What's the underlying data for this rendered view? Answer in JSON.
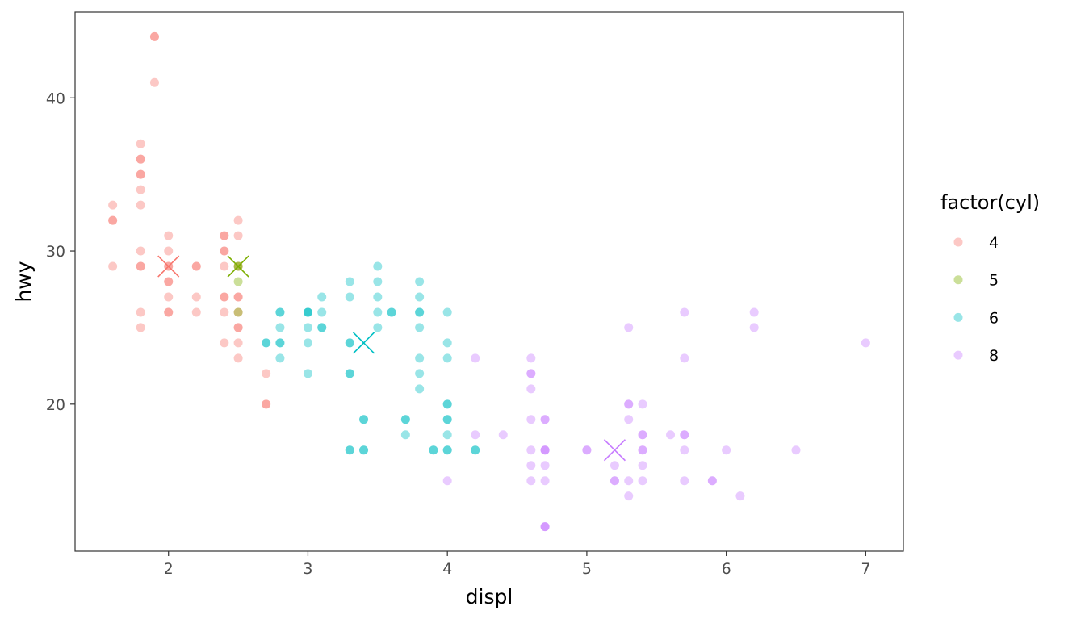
{
  "chart_data": {
    "type": "scatter",
    "xlabel": "displ",
    "ylabel": "hwy",
    "xlim": [
      1.33,
      7.27
    ],
    "ylim": [
      10.4,
      45.6
    ],
    "xticks": [
      2,
      3,
      4,
      5,
      6,
      7
    ],
    "yticks": [
      20,
      30,
      40
    ],
    "grid": false,
    "legend": {
      "title": "factor(cyl)",
      "placement": "right"
    },
    "point_alpha": 0.4,
    "series": [
      {
        "name": "4",
        "color": "#F8766D",
        "points": [
          [
            1.6,
            33
          ],
          [
            1.6,
            32
          ],
          [
            1.6,
            32
          ],
          [
            1.6,
            29
          ],
          [
            1.9,
            44
          ],
          [
            1.9,
            44
          ],
          [
            1.9,
            41
          ],
          [
            1.8,
            37
          ],
          [
            1.8,
            36
          ],
          [
            1.8,
            36
          ],
          [
            1.8,
            35
          ],
          [
            1.8,
            35
          ],
          [
            1.8,
            34
          ],
          [
            1.8,
            33
          ],
          [
            1.8,
            30
          ],
          [
            1.8,
            29
          ],
          [
            1.8,
            29
          ],
          [
            1.8,
            26
          ],
          [
            1.8,
            25
          ],
          [
            2.0,
            31
          ],
          [
            2.0,
            30
          ],
          [
            2.0,
            29
          ],
          [
            2.0,
            29
          ],
          [
            2.0,
            28
          ],
          [
            2.0,
            28
          ],
          [
            2.0,
            27
          ],
          [
            2.0,
            26
          ],
          [
            2.0,
            26
          ],
          [
            2.2,
            29
          ],
          [
            2.2,
            29
          ],
          [
            2.2,
            27
          ],
          [
            2.2,
            26
          ],
          [
            2.4,
            31
          ],
          [
            2.4,
            31
          ],
          [
            2.4,
            30
          ],
          [
            2.4,
            30
          ],
          [
            2.4,
            29
          ],
          [
            2.4,
            27
          ],
          [
            2.4,
            27
          ],
          [
            2.4,
            26
          ],
          [
            2.4,
            24
          ],
          [
            2.5,
            32
          ],
          [
            2.5,
            31
          ],
          [
            2.5,
            29
          ],
          [
            2.5,
            27
          ],
          [
            2.5,
            27
          ],
          [
            2.5,
            26
          ],
          [
            2.5,
            25
          ],
          [
            2.5,
            25
          ],
          [
            2.5,
            24
          ],
          [
            2.5,
            23
          ],
          [
            2.7,
            22
          ],
          [
            2.7,
            20
          ],
          [
            2.7,
            20
          ]
        ],
        "median": [
          2.0,
          29
        ]
      },
      {
        "name": "5",
        "color": "#7CAE00",
        "points": [
          [
            2.5,
            29
          ],
          [
            2.5,
            29
          ],
          [
            2.5,
            28
          ],
          [
            2.5,
            26
          ]
        ],
        "median": [
          2.5,
          29
        ]
      },
      {
        "name": "6",
        "color": "#00BFC4",
        "points": [
          [
            2.7,
            24
          ],
          [
            2.7,
            24
          ],
          [
            2.8,
            26
          ],
          [
            2.8,
            26
          ],
          [
            2.8,
            25
          ],
          [
            2.8,
            24
          ],
          [
            2.8,
            24
          ],
          [
            2.8,
            23
          ],
          [
            3.0,
            26
          ],
          [
            3.0,
            26
          ],
          [
            3.0,
            26
          ],
          [
            3.0,
            25
          ],
          [
            3.0,
            24
          ],
          [
            3.0,
            22
          ],
          [
            3.1,
            27
          ],
          [
            3.1,
            26
          ],
          [
            3.1,
            25
          ],
          [
            3.1,
            25
          ],
          [
            3.3,
            28
          ],
          [
            3.3,
            27
          ],
          [
            3.3,
            24
          ],
          [
            3.3,
            24
          ],
          [
            3.3,
            22
          ],
          [
            3.3,
            22
          ],
          [
            3.3,
            17
          ],
          [
            3.3,
            17
          ],
          [
            3.4,
            19
          ],
          [
            3.4,
            19
          ],
          [
            3.4,
            17
          ],
          [
            3.4,
            17
          ],
          [
            3.5,
            29
          ],
          [
            3.5,
            28
          ],
          [
            3.5,
            27
          ],
          [
            3.5,
            26
          ],
          [
            3.5,
            25
          ],
          [
            3.6,
            26
          ],
          [
            3.6,
            26
          ],
          [
            3.7,
            19
          ],
          [
            3.7,
            19
          ],
          [
            3.7,
            18
          ],
          [
            3.8,
            28
          ],
          [
            3.8,
            27
          ],
          [
            3.8,
            26
          ],
          [
            3.8,
            26
          ],
          [
            3.8,
            25
          ],
          [
            3.8,
            23
          ],
          [
            3.8,
            22
          ],
          [
            3.8,
            21
          ],
          [
            3.9,
            17
          ],
          [
            3.9,
            17
          ],
          [
            4.0,
            26
          ],
          [
            4.0,
            24
          ],
          [
            4.0,
            23
          ],
          [
            4.0,
            20
          ],
          [
            4.0,
            20
          ],
          [
            4.0,
            19
          ],
          [
            4.0,
            19
          ],
          [
            4.0,
            18
          ],
          [
            4.0,
            17
          ],
          [
            4.0,
            17
          ],
          [
            4.2,
            17
          ],
          [
            4.2,
            17
          ]
        ],
        "median": [
          3.4,
          24
        ]
      },
      {
        "name": "8",
        "color": "#C77CFF",
        "points": [
          [
            4.0,
            15
          ],
          [
            4.2,
            23
          ],
          [
            4.2,
            18
          ],
          [
            4.4,
            18
          ],
          [
            4.6,
            23
          ],
          [
            4.6,
            22
          ],
          [
            4.6,
            22
          ],
          [
            4.6,
            21
          ],
          [
            4.6,
            19
          ],
          [
            4.6,
            17
          ],
          [
            4.6,
            16
          ],
          [
            4.6,
            15
          ],
          [
            4.7,
            19
          ],
          [
            4.7,
            19
          ],
          [
            4.7,
            17
          ],
          [
            4.7,
            17
          ],
          [
            4.7,
            17
          ],
          [
            4.7,
            16
          ],
          [
            4.7,
            15
          ],
          [
            4.7,
            12
          ],
          [
            4.7,
            12
          ],
          [
            4.7,
            12
          ],
          [
            5.0,
            17
          ],
          [
            5.0,
            17
          ],
          [
            5.2,
            16
          ],
          [
            5.2,
            15
          ],
          [
            5.2,
            15
          ],
          [
            5.3,
            25
          ],
          [
            5.3,
            20
          ],
          [
            5.3,
            20
          ],
          [
            5.3,
            19
          ],
          [
            5.3,
            15
          ],
          [
            5.3,
            14
          ],
          [
            5.4,
            20
          ],
          [
            5.4,
            18
          ],
          [
            5.4,
            18
          ],
          [
            5.4,
            17
          ],
          [
            5.4,
            17
          ],
          [
            5.4,
            16
          ],
          [
            5.4,
            15
          ],
          [
            5.6,
            18
          ],
          [
            5.7,
            26
          ],
          [
            5.7,
            23
          ],
          [
            5.7,
            18
          ],
          [
            5.7,
            18
          ],
          [
            5.7,
            17
          ],
          [
            5.7,
            15
          ],
          [
            5.9,
            15
          ],
          [
            5.9,
            15
          ],
          [
            6.0,
            17
          ],
          [
            6.1,
            14
          ],
          [
            6.2,
            26
          ],
          [
            6.2,
            25
          ],
          [
            6.5,
            17
          ],
          [
            7.0,
            24
          ]
        ],
        "median": [
          5.2,
          17
        ]
      }
    ]
  }
}
